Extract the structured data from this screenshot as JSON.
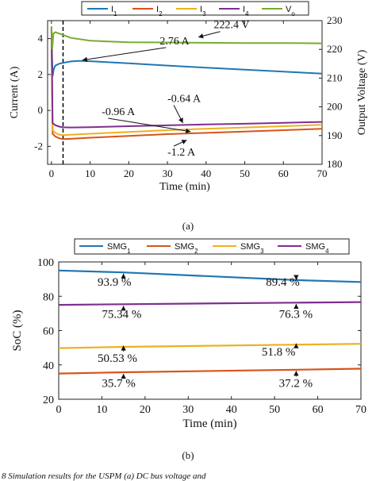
{
  "caption_a": "(a)",
  "caption_b": "(b)",
  "caption_bottom": "8   Simulation results for the USPM (a) DC bus voltage and",
  "chart_data": [
    {
      "type": "line",
      "xlabel": "Time (min)",
      "ylabel": "Current (A)",
      "y2label": "Output Voltage (V)",
      "xlim": [
        -1,
        70
      ],
      "ylim": [
        -3,
        5
      ],
      "y2lim": [
        180,
        230
      ],
      "xticks": [
        0,
        10,
        20,
        30,
        40,
        50,
        60,
        70
      ],
      "yticks": [
        -2,
        0,
        2,
        4
      ],
      "y2ticks": [
        180,
        190,
        200,
        210,
        220,
        230
      ],
      "legend_position": "top",
      "vline_x": 3,
      "series": [
        {
          "name": "I",
          "sub": "1",
          "color": "#1f77b4",
          "axis": "left",
          "x": [
            0,
            0.3,
            0.6,
            1,
            2,
            3,
            5,
            7,
            8,
            10,
            20,
            30,
            40,
            50,
            60,
            70
          ],
          "y": [
            4.6,
            1.9,
            2.3,
            2.5,
            2.6,
            2.65,
            2.73,
            2.76,
            2.76,
            2.74,
            2.62,
            2.5,
            2.38,
            2.27,
            2.16,
            2.05
          ]
        },
        {
          "name": "I",
          "sub": "2",
          "color": "#d95319",
          "axis": "left",
          "x": [
            0,
            0.3,
            1,
            2,
            3,
            5,
            10,
            20,
            30,
            40,
            50,
            60,
            70
          ],
          "y": [
            4.6,
            -1.3,
            -1.45,
            -1.55,
            -1.6,
            -1.58,
            -1.52,
            -1.42,
            -1.32,
            -1.25,
            -1.18,
            -1.1,
            -1.02
          ]
        },
        {
          "name": "I",
          "sub": "3",
          "color": "#edb120",
          "axis": "left",
          "x": [
            0,
            0.3,
            1,
            2,
            3,
            5,
            10,
            20,
            30,
            40,
            50,
            60,
            70
          ],
          "y": [
            4.6,
            -1.1,
            -1.25,
            -1.35,
            -1.38,
            -1.35,
            -1.3,
            -1.2,
            -1.1,
            -1.02,
            -0.95,
            -0.88,
            -0.8
          ]
        },
        {
          "name": "I",
          "sub": "4",
          "color": "#7e2f8e",
          "axis": "left",
          "x": [
            0,
            0.3,
            1,
            2,
            3,
            5,
            10,
            20,
            30,
            40,
            50,
            60,
            70
          ],
          "y": [
            4.6,
            -0.7,
            -0.82,
            -0.9,
            -0.94,
            -0.95,
            -0.93,
            -0.88,
            -0.83,
            -0.78,
            -0.74,
            -0.69,
            -0.64
          ]
        },
        {
          "name": "V",
          "sub": "o",
          "color": "#77ac30",
          "axis": "right",
          "x": [
            0,
            0.2,
            0.5,
            1,
            3,
            5,
            10,
            20,
            30,
            40,
            50,
            60,
            70
          ],
          "y": [
            228,
            220,
            225.5,
            226,
            225,
            224,
            223,
            222.5,
            222.4,
            222.3,
            222.2,
            222.2,
            222.1
          ]
        }
      ],
      "annotations": [
        {
          "text": "222.4 V",
          "x": 42,
          "y": 4.57,
          "ax": 38,
          "ay": 4.08
        },
        {
          "text": "2.76 A",
          "x": 28,
          "y": 3.68,
          "ax": 8,
          "ay": 2.8
        },
        {
          "text": "-0.64 A",
          "x": 30,
          "y": 0.47,
          "ax": 34,
          "ay": -0.7
        },
        {
          "text": "-0.96 A",
          "x": 13,
          "y": -0.26,
          "ax": 36,
          "ay": -1.18
        },
        {
          "text": "-1.2 A",
          "x": 30,
          "y": -2.52,
          "ax": 35,
          "ay": -1.65
        }
      ]
    },
    {
      "type": "line",
      "xlabel": "Time (min)",
      "ylabel": "SoC (%)",
      "xlim": [
        0,
        70
      ],
      "ylim": [
        20,
        100
      ],
      "xticks": [
        0,
        10,
        20,
        30,
        40,
        50,
        60,
        70
      ],
      "yticks": [
        20,
        40,
        60,
        80,
        100
      ],
      "legend_position": "top",
      "series": [
        {
          "name": "SMG",
          "sub": "1",
          "color": "#1f77b4",
          "x": [
            0,
            15,
            55,
            70
          ],
          "y": [
            95,
            93.9,
            89.4,
            88.3
          ]
        },
        {
          "name": "SMG",
          "sub": "2",
          "color": "#d95319",
          "x": [
            0,
            15,
            55,
            70
          ],
          "y": [
            35,
            35.7,
            37.2,
            37.8
          ]
        },
        {
          "name": "SMG",
          "sub": "3",
          "color": "#edb120",
          "x": [
            0,
            15,
            55,
            70
          ],
          "y": [
            49.8,
            50.53,
            51.8,
            52.3
          ]
        },
        {
          "name": "SMG",
          "sub": "4",
          "color": "#7e2f8e",
          "x": [
            0,
            15,
            55,
            70
          ],
          "y": [
            75,
            75.34,
            76.3,
            76.6
          ]
        }
      ],
      "annotations": [
        {
          "text": "93.9 %",
          "x": 9,
          "y": 86.2,
          "ax": 15,
          "ay": 93.2
        },
        {
          "text": "89.4 %",
          "x": 48,
          "y": 86.2,
          "ax": 55,
          "ay": 89.6
        },
        {
          "text": "75.34 %",
          "x": 10,
          "y": 67.5,
          "ax": 15,
          "ay": 74.4
        },
        {
          "text": "76.3 %",
          "x": 51,
          "y": 67.5,
          "ax": 55,
          "ay": 75.5
        },
        {
          "text": "50.53 %",
          "x": 9,
          "y": 41.8,
          "ax": 15,
          "ay": 51.2
        },
        {
          "text": "51.8 %",
          "x": 47,
          "y": 45.5,
          "ax": 55,
          "ay": 52.5
        },
        {
          "text": "35.7 %",
          "x": 10,
          "y": 27.2,
          "ax": 15,
          "ay": 34.8
        },
        {
          "text": "37.2 %",
          "x": 51,
          "y": 27.2,
          "ax": 55,
          "ay": 36.5
        }
      ]
    }
  ]
}
